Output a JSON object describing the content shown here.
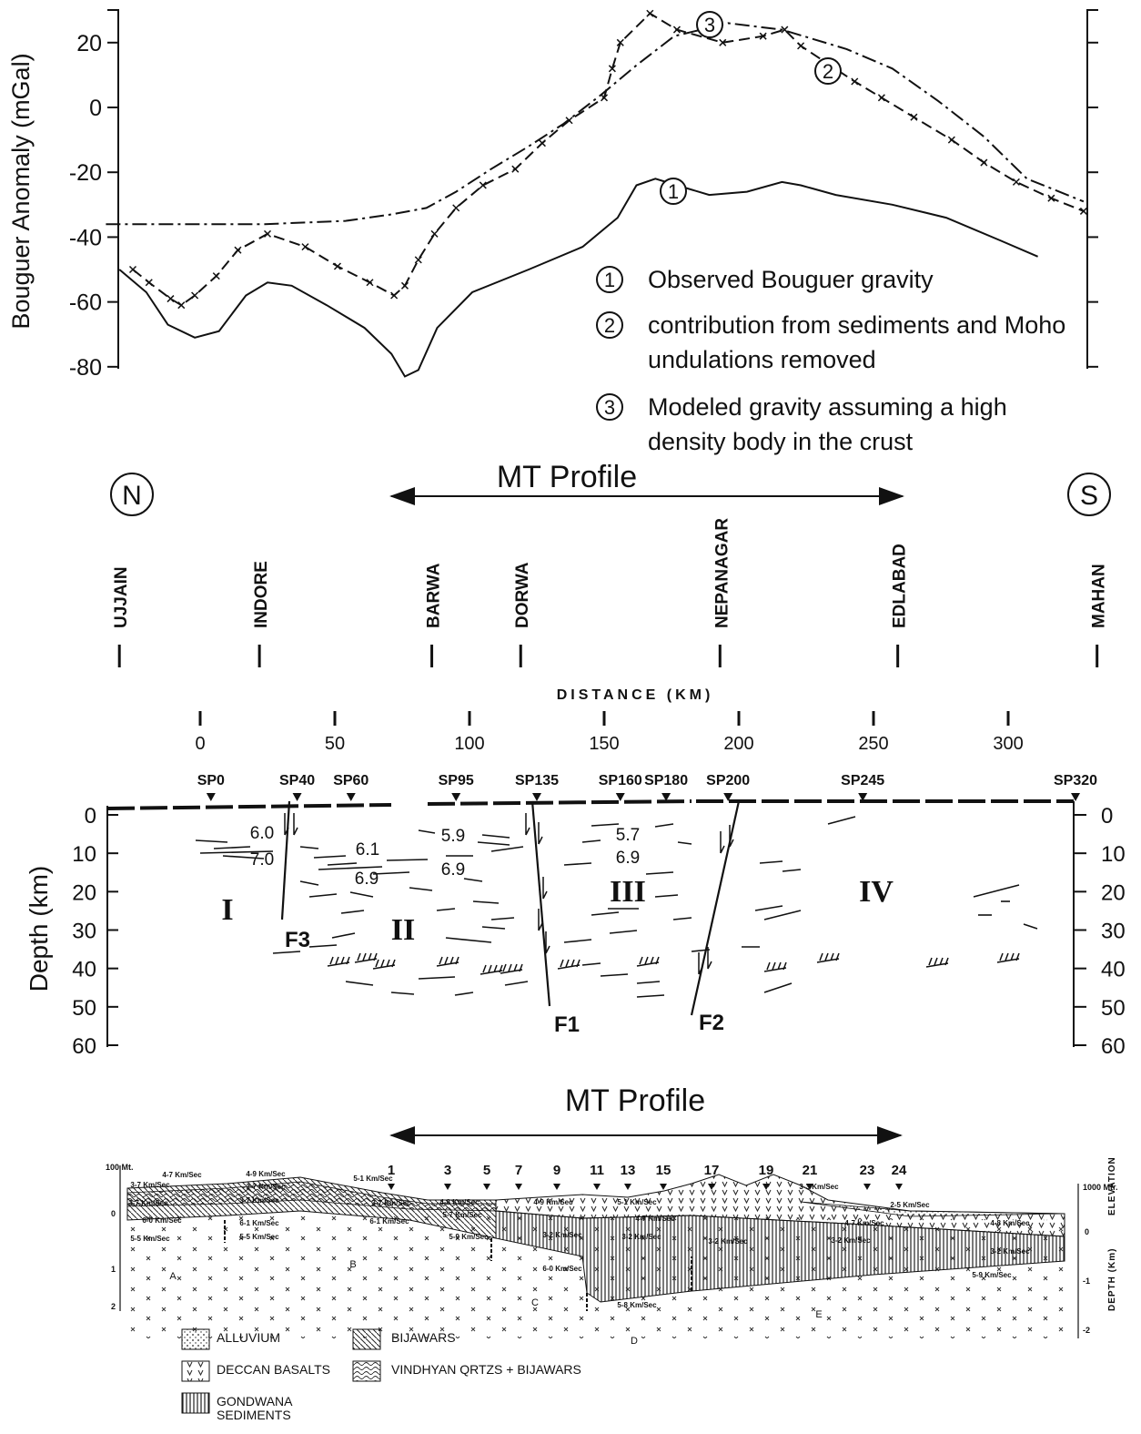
{
  "chart_data": [
    {
      "type": "line",
      "ylabel": "Bouguer Anomaly (mGal)",
      "xlim": [
        -35,
        333
      ],
      "ylim": [
        -81,
        30
      ],
      "yticks": [
        20,
        0,
        -20,
        -40,
        -60,
        -80
      ],
      "series": [
        {
          "name": "Observed Bouguer gravity",
          "label": "1",
          "color": "#111111",
          "style": "solid",
          "x": [
            -30,
            -20,
            -12,
            -2,
            7,
            17,
            25,
            34,
            47,
            61,
            71,
            76,
            81,
            88,
            101,
            122,
            142,
            155,
            162,
            169,
            177,
            189,
            203,
            216,
            223,
            236,
            257,
            277,
            297,
            311
          ],
          "values": [
            -50,
            -57,
            -67,
            -71,
            -69,
            -58,
            -54,
            -55,
            -61,
            -68,
            -76,
            -83,
            -81,
            -68,
            -57,
            -50,
            -43,
            -34,
            -24,
            -22,
            -24,
            -27,
            -26,
            -23,
            -24,
            -27,
            -30,
            -34,
            -41,
            -46
          ]
        },
        {
          "name": "contribution from sediments and Moho undulations removed",
          "label": "2",
          "color": "#111111",
          "style": "dashed",
          "marker": "x",
          "x": [
            -25,
            -19,
            -11,
            -7,
            -2,
            6,
            14,
            25,
            39,
            51,
            63,
            72,
            76,
            81,
            87,
            95,
            105,
            117,
            127,
            137,
            150,
            153,
            156,
            167,
            177,
            194,
            209,
            217,
            223,
            243,
            253,
            265,
            279,
            291,
            303,
            316,
            328
          ],
          "values": [
            -50,
            -54,
            -59,
            -61,
            -58,
            -52,
            -44,
            -39,
            -43,
            -49,
            -54,
            -58,
            -55,
            -47,
            -39,
            -31,
            -24,
            -19,
            -11,
            -4,
            3,
            12,
            20,
            29,
            24,
            20,
            22,
            24,
            19,
            8,
            3,
            -3,
            -10,
            -17,
            -23,
            -28,
            -32
          ]
        },
        {
          "name": "Modeled gravity assuming a high density body in the crust",
          "label": "3",
          "color": "#111111",
          "style": "dash-dot",
          "x": [
            -35,
            -7,
            24,
            54,
            71,
            84,
            95,
            108,
            122,
            135,
            149,
            162,
            176,
            196,
            216,
            240,
            257,
            274,
            291,
            307,
            328
          ],
          "values": [
            -36,
            -36,
            -36,
            -35,
            -33,
            -31,
            -26,
            -19,
            -12,
            -5,
            4,
            13,
            22,
            26,
            24,
            18,
            12,
            2,
            -9,
            -22,
            -29
          ]
        }
      ]
    },
    {
      "type": "section",
      "north": "N",
      "south": "S",
      "profile_label": "MT Profile",
      "towns": [
        {
          "label": "UJJAIN",
          "x": -30
        },
        {
          "label": "INDORE",
          "x": 22
        },
        {
          "label": "BARWA",
          "x": 86
        },
        {
          "label": "DORWA",
          "x": 119
        },
        {
          "label": "NEPANAGAR",
          "x": 193
        },
        {
          "label": "EDLABAD",
          "x": 259
        },
        {
          "label": "MAHAN",
          "x": 333
        }
      ],
      "xlabel": "DISTANCE (KM)",
      "xlim": [
        -35,
        333
      ],
      "xticks": [
        0,
        50,
        100,
        150,
        200,
        250,
        300
      ],
      "shotpoints": [
        {
          "label": "SP0",
          "x": 4
        },
        {
          "label": "SP40",
          "x": 36
        },
        {
          "label": "SP60",
          "x": 56
        },
        {
          "label": "SP95",
          "x": 95
        },
        {
          "label": "SP135",
          "x": 125
        },
        {
          "label": "SP160",
          "x": 156
        },
        {
          "label": "SP180",
          "x": 173
        },
        {
          "label": "SP200",
          "x": 196
        },
        {
          "label": "SP245",
          "x": 246
        },
        {
          "label": "SP320",
          "x": 325
        }
      ],
      "ylabel": "Depth (km)",
      "ylim": [
        0,
        60
      ],
      "yticks": [
        0,
        10,
        20,
        30,
        40,
        50,
        60
      ],
      "velocities": [
        "6.0",
        "7.0",
        "6.1",
        "6.9",
        "5.9",
        "6.9",
        "5.7",
        "6.9"
      ],
      "blocks": [
        "I",
        "II",
        "III",
        "IV"
      ],
      "faults": [
        "F3",
        "F1",
        "F2"
      ]
    }
  ],
  "seismic_section": {
    "profile_label": "MT Profile",
    "stations": [
      "1",
      "3",
      "5",
      "7",
      "9",
      "11",
      "13",
      "15",
      "17",
      "19",
      "21",
      "23",
      "24"
    ],
    "velocities": [
      "4-7 Km/Sec",
      "4-9 Km/Sec",
      "3-7 Km/Sec",
      "3-7 Km/Sec",
      "3-7 Km/Sec",
      "3-7 Km/Sec",
      "6-0 Km/Sec",
      "5-5 Km/Sec",
      "6-1 Km/Sec",
      "5-5 Km/Sec",
      "5-1 Km/Sec",
      "3-7 Km/Sec",
      "6-1 Km/Sec",
      "5-9 Km/Sec",
      "4-8 Km/Sec",
      "5-7 Km/Sec",
      "4-9 Km/Sec",
      "5-1 Km/Sec",
      "4-7 Km/Sec",
      "3-2 Km/Sec",
      "6-0 Km/Sec",
      "3-2 Km/Sec",
      "3-2 Km/Sec",
      "3-2 Km/Sec",
      "3-2 Km/Sec",
      "4-7 Km/Sec",
      "4-8 Km/Sec",
      "3-3 Km/Sec",
      "2-5 Km/Sec",
      "5-8 Km/Sec",
      "5-9 Km/Sec"
    ],
    "zones": [
      "A",
      "B",
      "C",
      "D",
      "E"
    ],
    "left_scale": [
      "100 Mt.",
      "0",
      "1",
      "2"
    ],
    "right_scale": [
      "1000 Mtr.",
      "0",
      "-1",
      "-2"
    ],
    "elevation_label": "ELEVATION",
    "depth_label": "DEPTH (Km)",
    "legend": [
      "ALLUVIUM",
      "DECCAN BASALTS",
      "GONDWANA SEDIMENTS",
      "BIJAWARS",
      "VINDHYAN QRTZS + BIJAWARS"
    ]
  }
}
